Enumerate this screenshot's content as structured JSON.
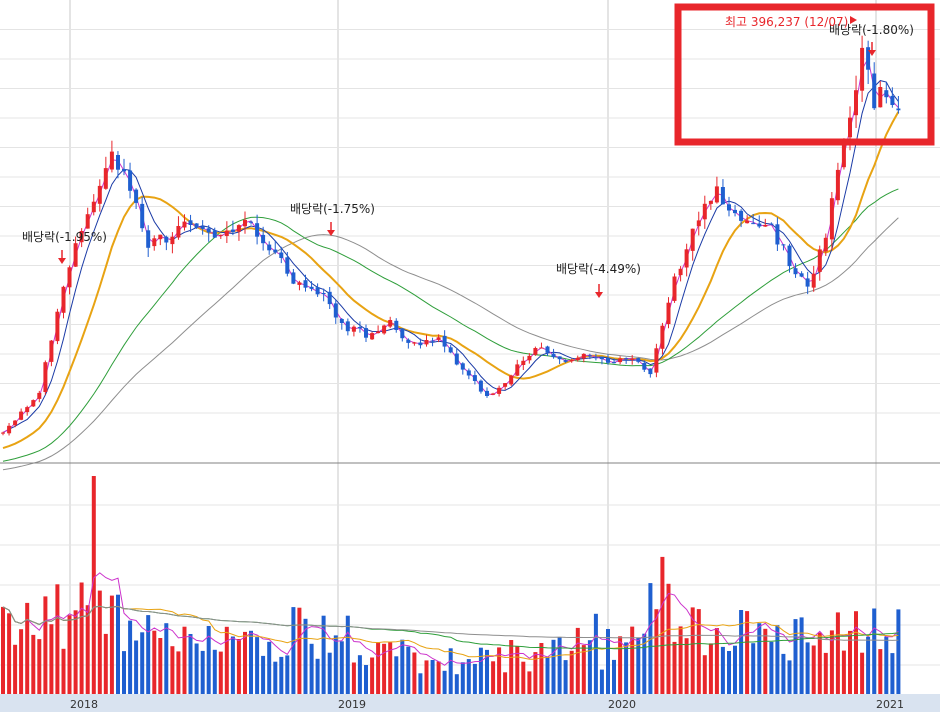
{
  "chart_data": {
    "type": "candlestick",
    "title": "",
    "x_ticks": [
      "2018",
      "2019",
      "2020",
      "2021"
    ],
    "annotations": {
      "high": "최고 396,237 (12/07)",
      "dividends": [
        "배당락(-1.95%)",
        "배당락(-1.75%)",
        "배당락(-4.49%)",
        "배당락(-1.80%)"
      ]
    },
    "colors": {
      "up": "#e8262b",
      "down": "#1f5fd0",
      "ma5": "#cc33cc",
      "ma20": "#1a3aa6",
      "ma60": "#e8a313",
      "ma120": "#2e9e3a",
      "ma240": "#8e8e8e",
      "highlight_box": "#e8262b"
    },
    "price_anchors": [
      [
        0,
        54
      ],
      [
        6,
        80
      ],
      [
        10,
        152
      ],
      [
        14,
        195
      ],
      [
        18,
        232
      ],
      [
        21,
        210
      ],
      [
        24,
        175
      ],
      [
        28,
        182
      ],
      [
        32,
        190
      ],
      [
        36,
        178
      ],
      [
        40,
        190
      ],
      [
        45,
        172
      ],
      [
        48,
        150
      ],
      [
        52,
        146
      ],
      [
        56,
        124
      ],
      [
        60,
        118
      ],
      [
        64,
        126
      ],
      [
        68,
        110
      ],
      [
        72,
        114
      ],
      [
        76,
        96
      ],
      [
        80,
        78
      ],
      [
        84,
        92
      ],
      [
        88,
        110
      ],
      [
        92,
        100
      ],
      [
        96,
        104
      ],
      [
        100,
        98
      ],
      [
        104,
        102
      ],
      [
        107,
        92
      ],
      [
        110,
        140
      ],
      [
        114,
        186
      ],
      [
        118,
        210
      ],
      [
        122,
        190
      ],
      [
        126,
        192
      ],
      [
        130,
        165
      ],
      [
        133,
        150
      ],
      [
        136,
        182
      ],
      [
        140,
        260
      ],
      [
        142,
        300
      ],
      [
        144,
        268
      ],
      [
        146,
        275
      ],
      [
        148,
        262
      ]
    ],
    "volume_anchors": [
      [
        0,
        3.0
      ],
      [
        10,
        4.0
      ],
      [
        20,
        3.8
      ],
      [
        30,
        2.6
      ],
      [
        40,
        2.2
      ],
      [
        50,
        3.2
      ],
      [
        55,
        3.0
      ],
      [
        60,
        2.3
      ],
      [
        70,
        1.7
      ],
      [
        80,
        1.8
      ],
      [
        90,
        2.0
      ],
      [
        100,
        1.8
      ],
      [
        105,
        2.6
      ],
      [
        108,
        5.0
      ],
      [
        112,
        3.8
      ],
      [
        120,
        3.0
      ],
      [
        130,
        3.0
      ],
      [
        140,
        3.7
      ],
      [
        148,
        3.2
      ]
    ]
  }
}
